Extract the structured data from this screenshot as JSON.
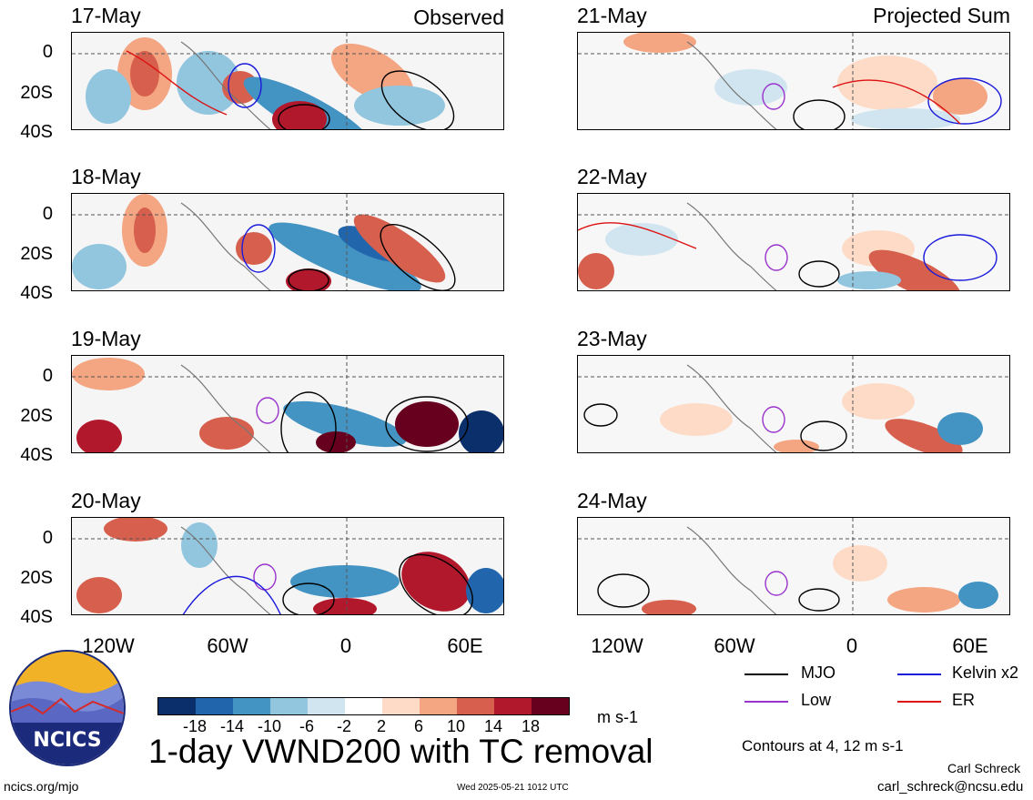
{
  "headers": {
    "observed": "Observed",
    "projected": "Projected Sum"
  },
  "left_panels": [
    "17-May",
    "18-May",
    "19-May",
    "20-May"
  ],
  "right_panels": [
    "21-May",
    "22-May",
    "23-May",
    "24-May"
  ],
  "y_ticks": [
    "0",
    "20S",
    "40S"
  ],
  "x_ticks": [
    "120W",
    "60W",
    "0",
    "60E"
  ],
  "legend": {
    "mjo": "MJO",
    "kelvin": "Kelvin x2",
    "low": "Low",
    "er": "ER"
  },
  "legend_colors": {
    "mjo": "#000000",
    "kelvin": "#1a1adb",
    "low": "#9933cc",
    "er": "#dd1111"
  },
  "colorbar": {
    "labels": [
      "-18",
      "-14",
      "-10",
      "-6",
      "-2",
      "2",
      "6",
      "10",
      "14",
      "18"
    ],
    "units": "m s-1",
    "colors": [
      "#0a2f6b",
      "#2166ac",
      "#4393c3",
      "#92c5de",
      "#d1e5f0",
      "#ffffff",
      "#fddbc7",
      "#f4a582",
      "#d6604d",
      "#b2182b",
      "#67001f"
    ]
  },
  "title": "1-day VWND200 with TC removal",
  "contours_note": "Contours at 4, 12 m s-1",
  "author": "Carl Schreck",
  "email": "carl_schreck@ncsu.edu",
  "website": "ncics.org/mjo",
  "timestamp": "Wed 2025-05-21 1012 UTC",
  "logo_text": "NCICS"
}
